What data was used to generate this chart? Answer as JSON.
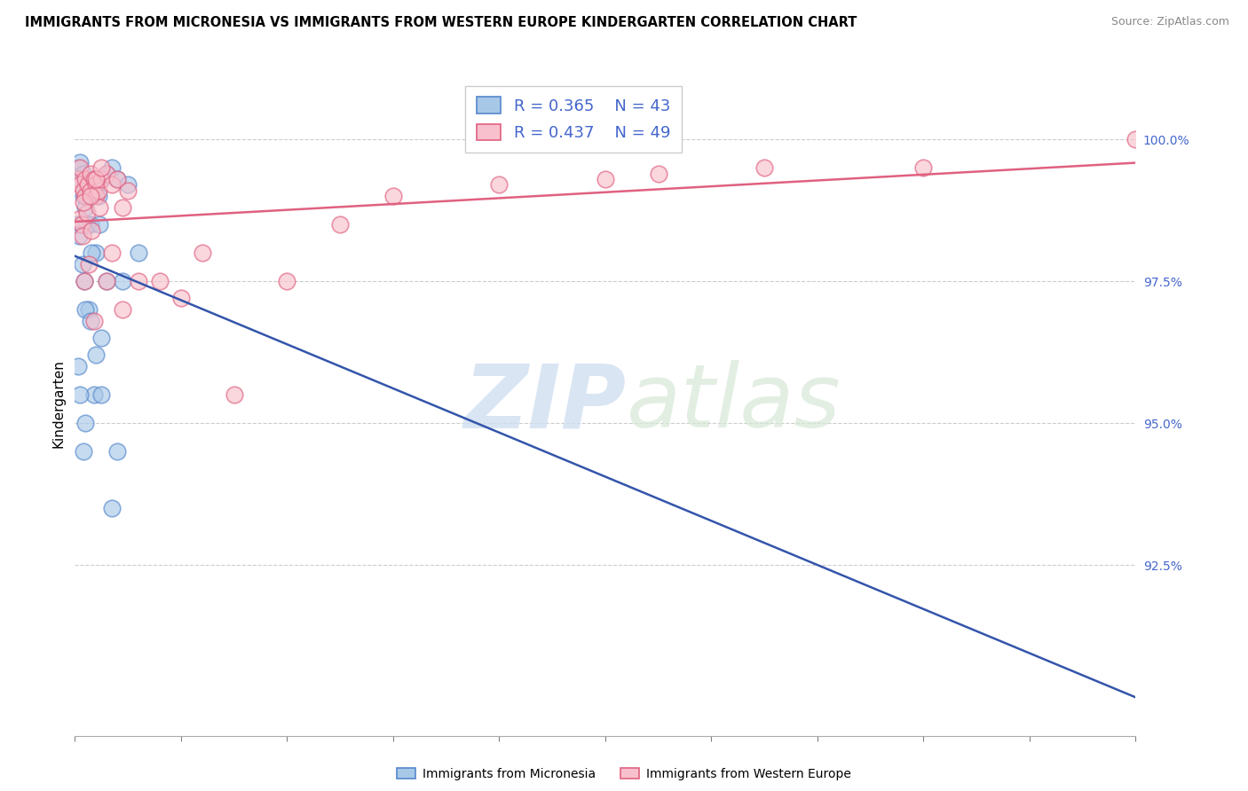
{
  "title": "IMMIGRANTS FROM MICRONESIA VS IMMIGRANTS FROM WESTERN EUROPE KINDERGARTEN CORRELATION CHART",
  "source": "Source: ZipAtlas.com",
  "ylabel": "Kindergarten",
  "y_ticks": [
    92.5,
    95.0,
    97.5,
    100.0
  ],
  "y_tick_labels": [
    "92.5%",
    "95.0%",
    "97.5%",
    "100.0%"
  ],
  "x_min": 0.0,
  "x_max": 100.0,
  "y_min": 89.5,
  "y_max": 101.2,
  "blue_color": "#a8c8e8",
  "blue_edge_color": "#5588cc",
  "pink_color": "#f8c0cc",
  "pink_edge_color": "#e06080",
  "blue_line_color": "#3355aa",
  "pink_line_color": "#e06080",
  "R_blue": 0.365,
  "N_blue": 43,
  "R_pink": 0.437,
  "N_pink": 49,
  "legend_label_blue": "Immigrants from Micronesia",
  "legend_label_pink": "Immigrants from Western Europe",
  "watermark_zip": "ZIP",
  "watermark_atlas": "atlas",
  "tick_color": "#4466cc",
  "blue_scatter_x": [
    0.3,
    0.5,
    0.5,
    0.8,
    0.8,
    1.0,
    1.0,
    1.2,
    1.5,
    1.5,
    1.8,
    2.0,
    2.0,
    2.2,
    2.5,
    3.0,
    3.5,
    4.0,
    4.5,
    5.0,
    6.0,
    0.2,
    0.4,
    0.6,
    0.7,
    0.9,
    1.1,
    1.3,
    1.6,
    1.8,
    2.3,
    2.5,
    3.0,
    0.3,
    0.5,
    1.0,
    1.5,
    2.0,
    0.8,
    2.5,
    1.0,
    3.5,
    4.0
  ],
  "blue_scatter_y": [
    99.5,
    99.3,
    99.6,
    99.4,
    99.0,
    99.2,
    98.8,
    99.1,
    99.0,
    98.5,
    99.1,
    99.2,
    98.0,
    99.0,
    99.3,
    99.4,
    99.5,
    99.3,
    97.5,
    99.2,
    98.0,
    98.5,
    98.3,
    98.5,
    97.8,
    97.5,
    98.5,
    97.0,
    98.0,
    95.5,
    98.5,
    96.5,
    97.5,
    96.0,
    95.5,
    97.0,
    96.8,
    96.2,
    94.5,
    95.5,
    95.0,
    93.5,
    94.5
  ],
  "pink_scatter_x": [
    0.3,
    0.5,
    0.5,
    0.8,
    1.0,
    1.0,
    1.2,
    1.5,
    1.5,
    1.8,
    2.0,
    2.0,
    2.2,
    2.5,
    3.0,
    3.5,
    4.0,
    4.5,
    5.0,
    0.4,
    0.6,
    0.7,
    0.9,
    1.1,
    1.3,
    1.6,
    1.8,
    2.3,
    3.0,
    0.8,
    1.5,
    2.0,
    2.5,
    3.5,
    4.5,
    6.0,
    8.0,
    10.0,
    12.0,
    15.0,
    20.0,
    25.0,
    30.0,
    40.0,
    50.0,
    55.0,
    65.0,
    80.0,
    100.0
  ],
  "pink_scatter_y": [
    99.3,
    99.2,
    99.5,
    99.1,
    99.3,
    99.0,
    99.2,
    99.1,
    99.4,
    99.3,
    99.2,
    99.0,
    99.1,
    99.3,
    99.4,
    99.2,
    99.3,
    98.8,
    99.1,
    98.6,
    98.5,
    98.3,
    97.5,
    98.7,
    97.8,
    98.4,
    96.8,
    98.8,
    97.5,
    98.9,
    99.0,
    99.3,
    99.5,
    98.0,
    97.0,
    97.5,
    97.5,
    97.2,
    98.0,
    95.5,
    97.5,
    98.5,
    99.0,
    99.2,
    99.3,
    99.4,
    99.5,
    99.5,
    100.0
  ]
}
